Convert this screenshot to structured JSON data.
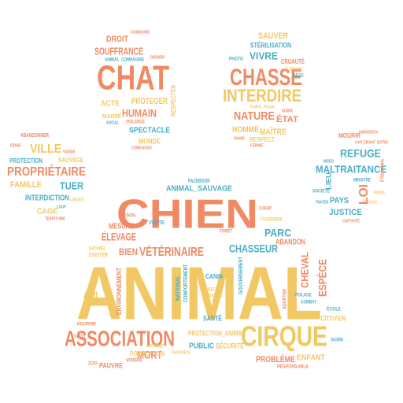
{
  "palette": {
    "yellow": "#f2c864",
    "salmon": "#ef8a64",
    "teal": "#4aaec5",
    "background": "#ffffff"
  },
  "cloud": {
    "shape": "paw-print",
    "main_pad": {
      "animal": "ANIMAL",
      "chien": "CHIEN",
      "association": "ASSOCIATION",
      "cirque": "CIRQUE",
      "veterinaire": "VÉTÉRINAIRE",
      "elevage": "ÉLEVAGE",
      "chasseur": "CHASSEUR",
      "parc": "PARC",
      "mort": "MORT",
      "cheval": "CHEVAL",
      "espece": "ESPÈCE",
      "bien": "BIEN",
      "mesure": "MESURE",
      "abandon": "ABANDON",
      "animal_sauvage": "ANIMAL_SAUVAGE",
      "protection_animal": "PROTECTION_ANIMAL",
      "probleme": "PROBLÈME",
      "enfant": "ENFANT",
      "citoyen": "CITOYEN",
      "securite": "SÉCURITÉ",
      "public": "PUBLIC",
      "population": "POPULATION",
      "pauvre": "PAUVRE",
      "ami": "AMI",
      "sante": "SANTÉ",
      "canin": "CANIN",
      "environnement": "ENVIRONNEMENT",
      "national": "NATIONAL",
      "comportement": "COMPORTEMENT",
      "gouvernement": "GOUVERNEMENT",
      "police": "POLICE",
      "ecole": "ÉCOLE",
      "soin": "SOIN",
      "vente": "VENTE",
      "prison": "PRISON",
      "fourriere": "FOURRIÈRE",
      "exister": "EXISTER",
      "naturel": "NATUREL",
      "facebook": "FACEBOOK",
      "coup": "COUP",
      "foret": "FORÊT",
      "nourrir": "NOURRIR",
      "chiot": "CHIOT",
      "zoo": "ZOO",
      "responsable": "RESPONSABLE",
      "oiseau": "OISEAU",
      "humanite": "HUMANITÉ",
      "victime": "VICTIME",
      "voisin": "VOISIN",
      "genevieve": "GENEVIÈVE",
      "adopter": "ADOPTER",
      "combat": "COMBAT"
    },
    "toe_chat": {
      "chat": "CHAT",
      "souffrance": "SOUFFRANCE",
      "droit": "DROIT",
      "humain": "HUMAIN",
      "proteger": "PROTEGER",
      "acte": "ACTE",
      "spectacle": "SPECTACLE",
      "monde": "MONDE",
      "violence": "VIOLENCE",
      "maire": "MAIRIE",
      "respecter": "RESPECTER",
      "conduire": "CONDUIRE",
      "animal_compagnie": "ANIMAL_COMPAGNIE",
      "societe": "SOCIAL",
      "derniere": "DERNIER",
      "conscience": "CONSCIENCE"
    },
    "toe_chasse": {
      "chasse": "CHASSE",
      "interdire": "INTERDIRE",
      "nature": "NATURE",
      "etat": "ÉTAT",
      "vivre": "VIVRE",
      "sauver": "SAUVER",
      "sterilisation": "STÉRILISATION",
      "homme": "HOMME",
      "maitre": "MAÎTRE",
      "respect": "RESPECT",
      "cruaute": "CRUAUTÉ",
      "photo": "PHOTO",
      "elephant": "ÉLÉPHANT",
      "faune": "FAUNE",
      "ferme": "FERME",
      "subir": "SUBIR",
      "faire_peur": "FAIRE_PEUR",
      "bete": "BÊTE"
    },
    "toe_ville": {
      "ville": "VILLE",
      "proprietaire": "PROPRIÉTAIRE",
      "famille": "FAMILLE",
      "tuer": "TUER",
      "interdiction": "INTERDICTION",
      "cage": "CAGE",
      "protection": "PROTECTION",
      "sauvage": "SAUVAGE",
      "abandonner": "ABANDONNER",
      "territoire": "TERRITOIRE",
      "viande": "VIANDE",
      "loup": "LOUP",
      "liberte": "LIBERTÉ",
      "dense": "DENSE"
    },
    "toe_refuge": {
      "refuge": "REFUGE",
      "maltraitance": "MALTRAITANCE",
      "loi": "LOI",
      "pays": "PAYS",
      "justice": "JUSTICE",
      "mourir": "MOURIR",
      "lieu": "LIEU",
      "ministre": "MINISTRE",
      "captivite": "CAPTIVITÉ",
      "chat_errant": "CHAT_ERRANT",
      "battre": "BATTRE",
      "video": "VIDÉO",
      "societe": "SOCIÉTÉ",
      "dangereux": "DANGEREUX",
      "etre_animal": "ÊTRE_ANIMAL",
      "traiter": "TRAITER",
      "nouveau": "NOUVEAU",
      "perdre": "PERDRE"
    }
  }
}
